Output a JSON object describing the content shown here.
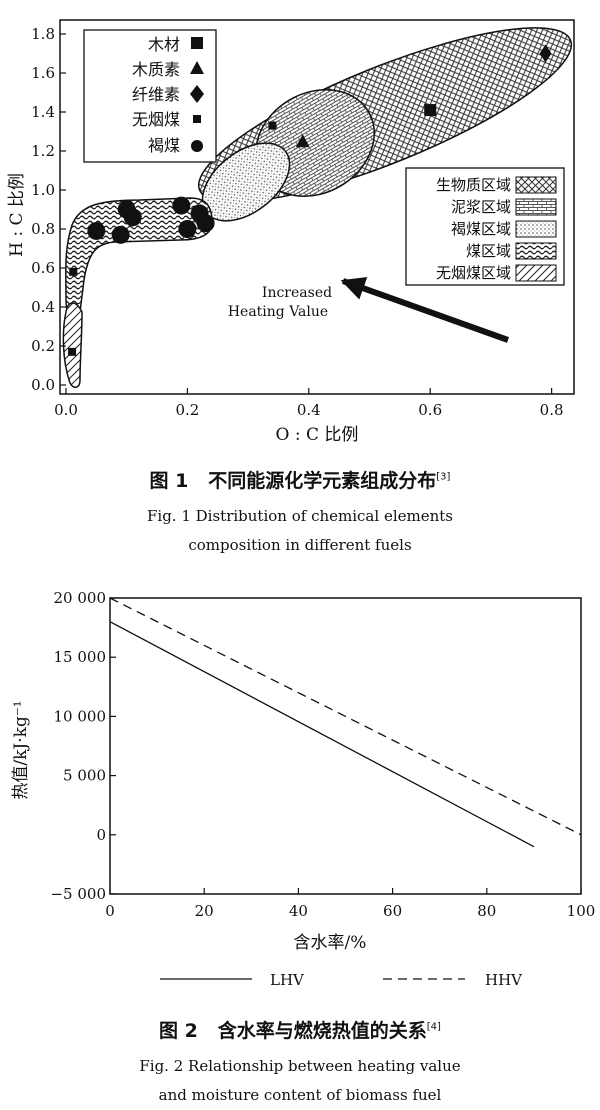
{
  "chart_data": [
    {
      "type": "scatter",
      "title": "",
      "xlabel": "O : C 比例",
      "ylabel": "H : C 比例",
      "xlim": [
        0,
        0.85
      ],
      "ylim": [
        0,
        1.85
      ],
      "x_ticks": [
        "0.0",
        "0.2",
        "0.4",
        "0.6",
        "0.8"
      ],
      "y_ticks": [
        "0.0",
        "0.2",
        "0.4",
        "0.6",
        "0.8",
        "1.0",
        "1.2",
        "1.4",
        "1.6",
        "1.8"
      ],
      "legend_markers_position": "top-left",
      "legend_regions_position": "right",
      "series": [
        {
          "name": "木材",
          "marker": "square",
          "points": [
            [
              0.6,
              1.41
            ]
          ]
        },
        {
          "name": "木质素",
          "marker": "triangle",
          "points": [
            [
              0.39,
              1.25
            ]
          ]
        },
        {
          "name": "纤维素",
          "marker": "diamond",
          "points": [
            [
              0.79,
              1.7
            ]
          ]
        },
        {
          "name": "无烟煤",
          "marker": "small-square",
          "points": [
            [
              0.34,
              1.33
            ],
            [
              0.012,
              0.58
            ],
            [
              0.01,
              0.17
            ]
          ]
        },
        {
          "name": "褐煤",
          "marker": "circle",
          "points": [
            [
              0.05,
              0.79
            ],
            [
              0.09,
              0.77
            ],
            [
              0.1,
              0.9
            ],
            [
              0.11,
              0.86
            ],
            [
              0.19,
              0.92
            ],
            [
              0.2,
              0.8
            ],
            [
              0.22,
              0.88
            ],
            [
              0.23,
              0.83
            ]
          ]
        }
      ],
      "regions": [
        {
          "name": "生物质区域",
          "pattern": "crosshatch"
        },
        {
          "name": "泥浆区域",
          "pattern": "bricks"
        },
        {
          "name": "褐煤区域",
          "pattern": "dots"
        },
        {
          "name": "煤区域",
          "pattern": "wave"
        },
        {
          "name": "无烟煤区域",
          "pattern": "diagonal"
        }
      ],
      "annotation": [
        "Increased",
        "Heating Value"
      ],
      "caption": {
        "label": "图 1",
        "cn": "不同能源化学元素组成分布",
        "ref": "[3]",
        "en_line1": "Fig. 1 Distribution of chemical elements",
        "en_line2": "composition in different fuels"
      }
    },
    {
      "type": "line",
      "title": "",
      "xlabel": "含水率/%",
      "ylabel": "热值/kJ·kg⁻¹",
      "xlim": [
        0,
        100
      ],
      "ylim": [
        -5000,
        20000
      ],
      "x_ticks": [
        "0",
        "20",
        "40",
        "60",
        "80",
        "100"
      ],
      "y_ticks": [
        "−5 000",
        "0",
        "5 000",
        "10 000",
        "15 000",
        "20 000"
      ],
      "legend_position": "bottom",
      "series": [
        {
          "name": "LHV",
          "style": "solid",
          "x": [
            0,
            90
          ],
          "y": [
            18000,
            -1000
          ]
        },
        {
          "name": "HHV",
          "style": "dashed",
          "x": [
            0,
            100
          ],
          "y": [
            20000,
            0
          ]
        }
      ],
      "caption": {
        "label": "图 2",
        "cn": "含水率与燃烧热值的关系",
        "ref": "[4]",
        "en_line1": "Fig. 2 Relationship between heating value",
        "en_line2": "and moisture content of biomass fuel"
      }
    }
  ]
}
